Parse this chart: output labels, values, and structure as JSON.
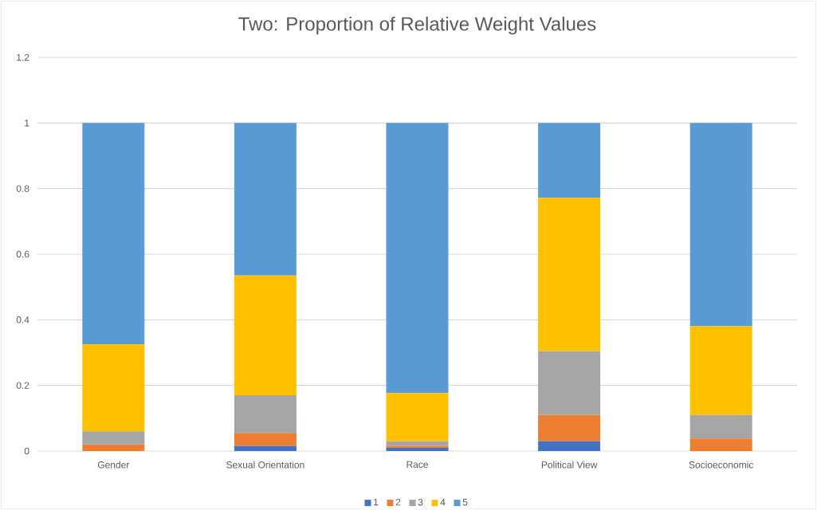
{
  "chart_data": {
    "type": "bar",
    "stacked": true,
    "title": "Two: Proportion of Relative Weight Values",
    "categories": [
      "Gender",
      "Sexual Orientation",
      "Race",
      "Political View",
      "Socioeconomic"
    ],
    "series": [
      {
        "name": "1",
        "color": "#4472c4",
        "values": [
          0,
          0.015,
          0.01,
          0.03,
          0
        ]
      },
      {
        "name": "2",
        "color": "#ed7d31",
        "values": [
          0.02,
          0.04,
          0.005,
          0.08,
          0.038
        ]
      },
      {
        "name": "3",
        "color": "#a5a5a5",
        "values": [
          0.04,
          0.115,
          0.015,
          0.195,
          0.072
        ]
      },
      {
        "name": "4",
        "color": "#ffc000",
        "values": [
          0.265,
          0.365,
          0.147,
          0.467,
          0.271
        ]
      },
      {
        "name": "5",
        "color": "#5b9bd5",
        "values": [
          0.675,
          0.465,
          0.823,
          0.228,
          0.619
        ]
      }
    ],
    "ylim": [
      0,
      1.2
    ],
    "yticks": [
      0,
      0.2,
      0.4,
      0.6,
      0.8,
      1,
      1.2
    ],
    "grid": "y",
    "legend": "bottom"
  }
}
